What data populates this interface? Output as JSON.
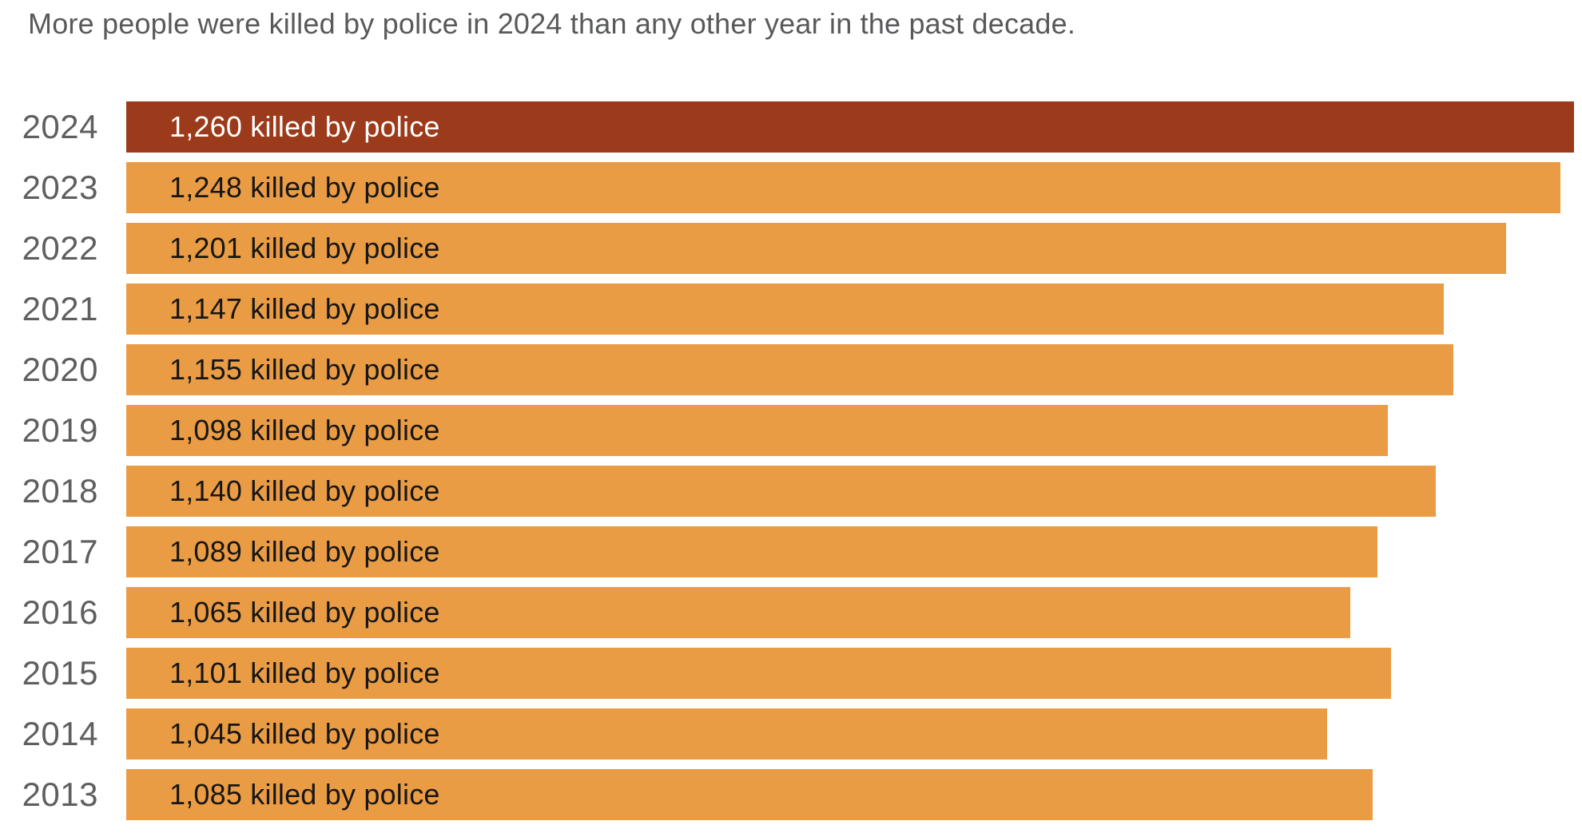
{
  "title": "More people were killed by police in 2024 than any other year in the past decade.",
  "chart_data": {
    "type": "bar",
    "orientation": "horizontal",
    "title": "More people were killed by police in 2024 than any other year in the past decade.",
    "categories": [
      "2024",
      "2023",
      "2022",
      "2021",
      "2020",
      "2019",
      "2018",
      "2017",
      "2016",
      "2015",
      "2014",
      "2013"
    ],
    "values": [
      1260,
      1248,
      1201,
      1147,
      1155,
      1098,
      1140,
      1089,
      1065,
      1101,
      1045,
      1085
    ],
    "bar_labels": [
      "1,260 killed by police",
      "1,248 killed by police",
      "1,201 killed by police",
      "1,147 killed by police",
      "1,155 killed by police",
      "1,098 killed by police",
      "1,140 killed by police",
      "1,089 killed by police",
      "1,065 killed by police",
      "1,101 killed by police",
      "1,045 killed by police",
      "1,085 killed by police"
    ],
    "xlabel": "",
    "ylabel": "",
    "xlim": [
      0,
      1260
    ],
    "grid": false,
    "legend": false,
    "highlight_index": 0,
    "colors": {
      "highlight_bar": "#9B3B1B",
      "default_bar": "#EA9C44",
      "highlight_label": "#FFFFFF",
      "default_label": "#161616",
      "year_label": "#5E5F61",
      "title": "#58595B"
    }
  }
}
